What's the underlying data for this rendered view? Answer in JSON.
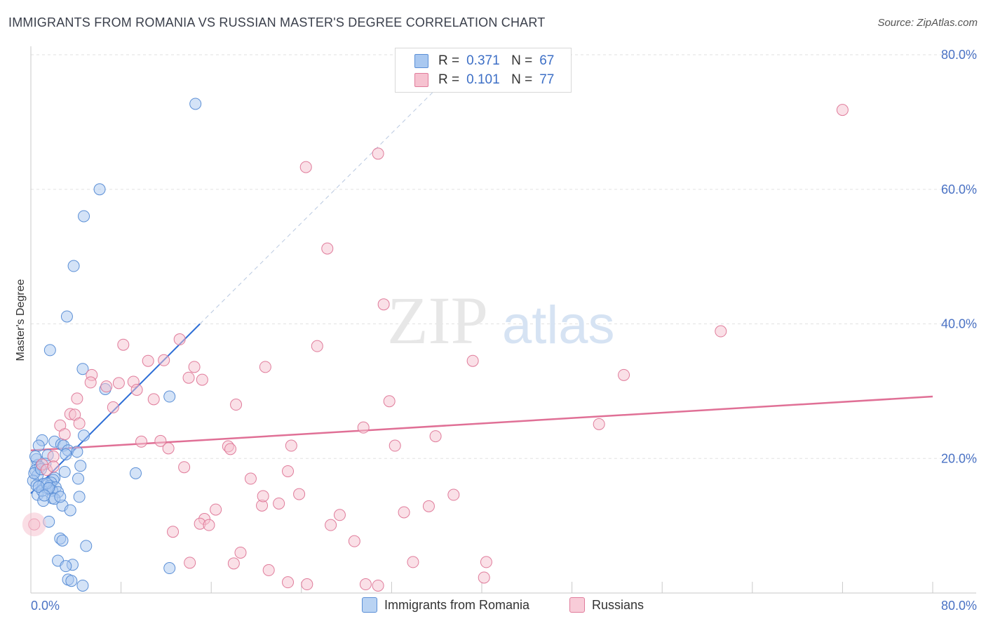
{
  "title": "IMMIGRANTS FROM ROMANIA VS RUSSIAN MASTER'S DEGREE CORRELATION CHART",
  "source": "Source: ZipAtlas.com",
  "watermark": {
    "zip": "ZIP",
    "atlas": "atlas"
  },
  "legend": {
    "r_label": "R =",
    "n_label": "N =",
    "rows": [
      {
        "r": "0.371",
        "n": "67",
        "color": "#a9c8f0",
        "border": "#5b8fd6"
      },
      {
        "r": "0.101",
        "n": "77",
        "color": "#f6c2d0",
        "border": "#e07c9b"
      }
    ]
  },
  "bottom_legend": [
    {
      "label": "Immigrants from Romania",
      "color": "#b9d3f3",
      "border": "#5b8fd6"
    },
    {
      "label": "Russians",
      "color": "#f8ccd8",
      "border": "#e07c9b"
    }
  ],
  "chart_data": {
    "type": "scatter",
    "title": "IMMIGRANTS FROM ROMANIA VS RUSSIAN MASTER'S DEGREE CORRELATION CHART",
    "xlabel": "",
    "ylabel": "Master's Degree",
    "xlim": [
      0,
      80
    ],
    "ylim": [
      0,
      80
    ],
    "x_tick_labels": [
      "0.0%",
      "80.0%"
    ],
    "y_tick_labels": [
      "20.0%",
      "40.0%",
      "60.0%",
      "80.0%"
    ],
    "y_ticks": [
      20,
      40,
      60,
      80
    ],
    "grid": true,
    "series": [
      {
        "name": "Immigrants from Romania",
        "color": "#5b8fd6",
        "fill": "#a9c8f0",
        "trend": {
          "x": [
            0,
            15
          ],
          "y": [
            14.8,
            40
          ],
          "extended_to": [
            36,
            75
          ]
        },
        "points": [
          [
            14.6,
            72.7
          ],
          [
            6.1,
            60.0
          ],
          [
            4.7,
            56.0
          ],
          [
            3.8,
            48.6
          ],
          [
            3.2,
            41.1
          ],
          [
            1.7,
            36.1
          ],
          [
            4.6,
            33.3
          ],
          [
            6.6,
            30.3
          ],
          [
            12.3,
            29.2
          ],
          [
            4.7,
            23.4
          ],
          [
            1.0,
            22.7
          ],
          [
            2.1,
            22.5
          ],
          [
            0.7,
            21.9
          ],
          [
            2.7,
            22.1
          ],
          [
            2.9,
            21.9
          ],
          [
            3.3,
            21.2
          ],
          [
            4.1,
            21.0
          ],
          [
            3.1,
            20.6
          ],
          [
            1.5,
            20.5
          ],
          [
            0.5,
            19.9
          ],
          [
            1.3,
            19.2
          ],
          [
            0.6,
            19.0
          ],
          [
            0.8,
            18.7
          ],
          [
            4.4,
            18.9
          ],
          [
            0.4,
            18.2
          ],
          [
            0.6,
            17.5
          ],
          [
            0.2,
            16.7
          ],
          [
            2.1,
            17.1
          ],
          [
            2.0,
            16.8
          ],
          [
            9.3,
            17.8
          ],
          [
            4.2,
            17.0
          ],
          [
            1.8,
            16.4
          ],
          [
            1.1,
            16.2
          ],
          [
            1.7,
            15.9
          ],
          [
            2.2,
            15.7
          ],
          [
            1.5,
            15.5
          ],
          [
            1.9,
            15.2
          ],
          [
            2.4,
            15.0
          ],
          [
            0.6,
            14.6
          ],
          [
            4.3,
            14.3
          ],
          [
            1.9,
            14.1
          ],
          [
            2.1,
            14.0
          ],
          [
            1.1,
            13.7
          ],
          [
            2.8,
            13.0
          ],
          [
            3.5,
            12.3
          ],
          [
            1.6,
            10.6
          ],
          [
            2.6,
            8.1
          ],
          [
            2.8,
            7.8
          ],
          [
            4.9,
            7.0
          ],
          [
            2.4,
            4.8
          ],
          [
            3.7,
            4.2
          ],
          [
            3.1,
            4.0
          ],
          [
            12.3,
            3.7
          ],
          [
            3.3,
            2.0
          ],
          [
            3.6,
            1.8
          ],
          [
            4.6,
            1.1
          ],
          [
            0.5,
            16.0
          ],
          [
            1.0,
            15.2
          ],
          [
            0.3,
            17.8
          ],
          [
            0.9,
            18.4
          ],
          [
            1.4,
            16.3
          ],
          [
            2.6,
            14.3
          ],
          [
            0.7,
            15.8
          ],
          [
            1.6,
            15.6
          ],
          [
            3.0,
            18.0
          ],
          [
            1.2,
            14.5
          ],
          [
            0.4,
            20.3
          ]
        ]
      },
      {
        "name": "Russians",
        "color": "#e07c9b",
        "fill": "#f6c2d0",
        "trend": {
          "x": [
            0,
            80
          ],
          "y": [
            21.2,
            29.2
          ]
        },
        "points": [
          [
            72.0,
            71.8
          ],
          [
            30.8,
            65.3
          ],
          [
            24.4,
            63.3
          ],
          [
            26.3,
            51.2
          ],
          [
            31.3,
            42.9
          ],
          [
            61.2,
            38.9
          ],
          [
            8.2,
            36.9
          ],
          [
            25.4,
            36.7
          ],
          [
            13.2,
            37.7
          ],
          [
            10.4,
            34.5
          ],
          [
            11.8,
            34.6
          ],
          [
            14.5,
            33.6
          ],
          [
            20.8,
            33.6
          ],
          [
            39.2,
            34.5
          ],
          [
            52.6,
            32.4
          ],
          [
            5.4,
            32.4
          ],
          [
            14.0,
            32.0
          ],
          [
            15.2,
            31.7
          ],
          [
            7.8,
            31.2
          ],
          [
            9.1,
            31.4
          ],
          [
            5.3,
            31.3
          ],
          [
            6.7,
            30.7
          ],
          [
            9.4,
            30.2
          ],
          [
            4.1,
            28.9
          ],
          [
            10.9,
            28.8
          ],
          [
            18.2,
            28.0
          ],
          [
            31.8,
            28.5
          ],
          [
            7.3,
            27.6
          ],
          [
            3.5,
            26.6
          ],
          [
            3.9,
            26.5
          ],
          [
            4.3,
            25.2
          ],
          [
            2.6,
            24.9
          ],
          [
            50.4,
            25.1
          ],
          [
            29.5,
            24.6
          ],
          [
            35.9,
            23.3
          ],
          [
            3.0,
            23.6
          ],
          [
            9.8,
            22.5
          ],
          [
            11.5,
            22.6
          ],
          [
            17.5,
            21.8
          ],
          [
            23.1,
            21.9
          ],
          [
            32.3,
            21.9
          ],
          [
            17.7,
            21.4
          ],
          [
            12.2,
            21.5
          ],
          [
            2.0,
            20.3
          ],
          [
            1.0,
            19.1
          ],
          [
            13.6,
            18.7
          ],
          [
            22.8,
            18.1
          ],
          [
            1.4,
            18.3
          ],
          [
            19.5,
            17.0
          ],
          [
            23.8,
            14.7
          ],
          [
            37.5,
            14.6
          ],
          [
            22.0,
            13.3
          ],
          [
            20.5,
            13.0
          ],
          [
            35.3,
            12.9
          ],
          [
            16.4,
            12.4
          ],
          [
            33.1,
            12.0
          ],
          [
            27.4,
            11.6
          ],
          [
            15.4,
            11.0
          ],
          [
            15.0,
            10.3
          ],
          [
            26.6,
            10.1
          ],
          [
            15.8,
            10.1
          ],
          [
            12.6,
            9.1
          ],
          [
            28.7,
            7.7
          ],
          [
            20.6,
            14.4
          ],
          [
            18.6,
            6.0
          ],
          [
            14.1,
            4.5
          ],
          [
            18.0,
            4.4
          ],
          [
            33.9,
            4.6
          ],
          [
            40.4,
            4.6
          ],
          [
            21.1,
            3.4
          ],
          [
            22.8,
            1.6
          ],
          [
            24.5,
            1.3
          ],
          [
            29.7,
            1.3
          ],
          [
            30.8,
            1.1
          ],
          [
            40.2,
            2.3
          ],
          [
            0.3,
            10.2
          ],
          [
            2.0,
            18.8
          ]
        ]
      }
    ]
  }
}
